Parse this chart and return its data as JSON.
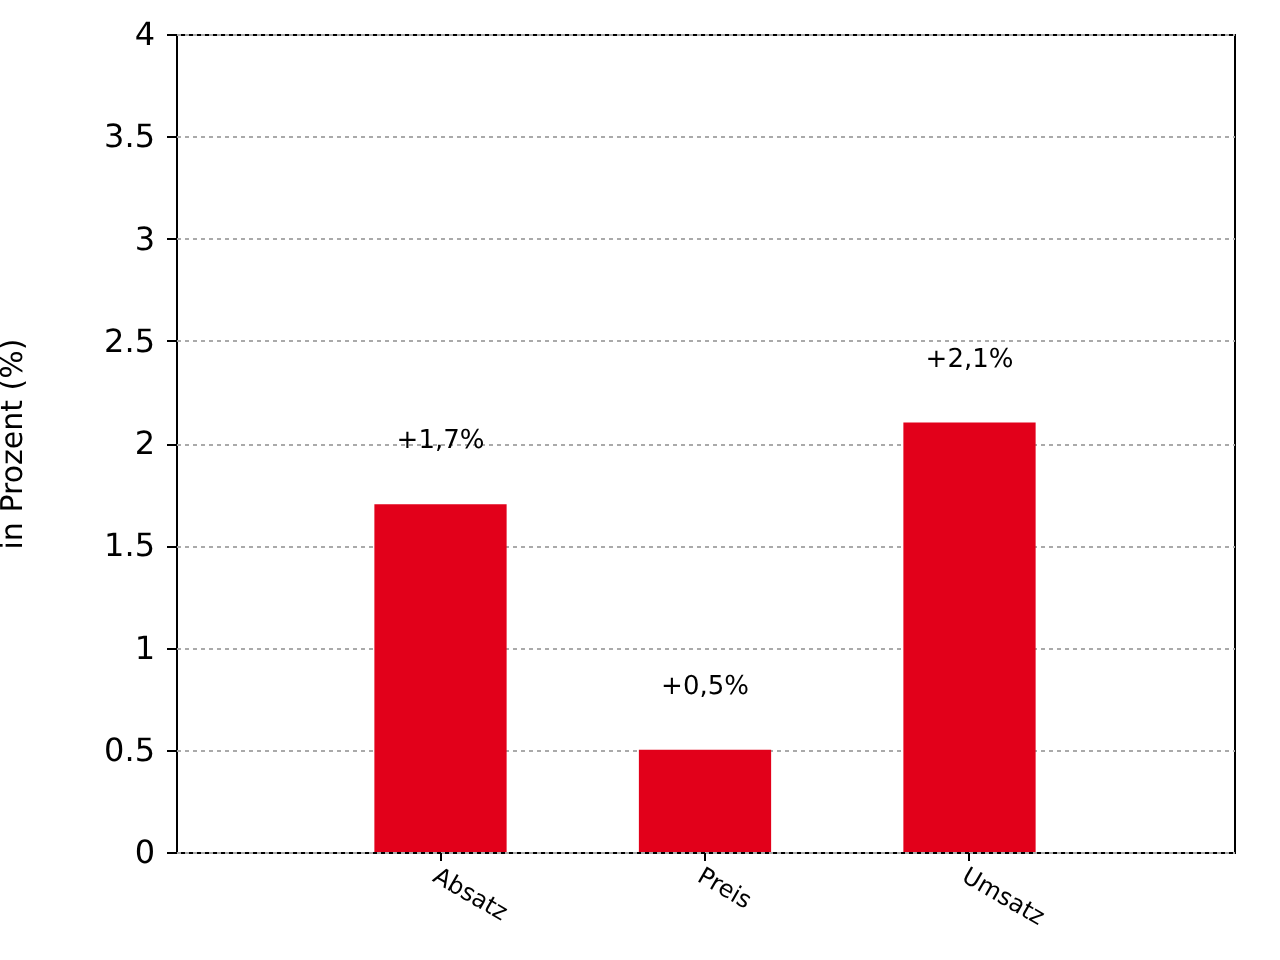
{
  "chart_data": {
    "type": "bar",
    "ylabel": "in Prozent (%)",
    "categories": [
      "Absatz",
      "Preis",
      "Umsatz"
    ],
    "values": [
      1.7,
      0.5,
      2.1
    ],
    "value_labels": [
      "+1,7%",
      "+0,5%",
      "+2,1%"
    ],
    "color": "#e2001a",
    "ylim": [
      0,
      4
    ],
    "yticks": [
      0,
      0.5,
      1,
      1.5,
      2,
      2.5,
      3,
      3.5,
      4
    ],
    "grid": "y"
  }
}
